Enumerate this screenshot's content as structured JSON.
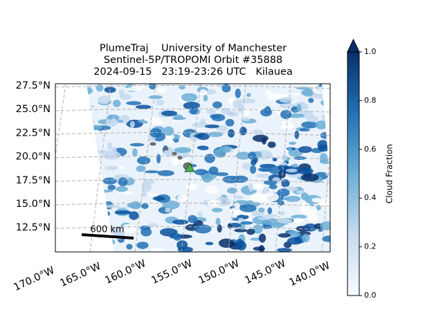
{
  "title_lines": [
    "PlumeTraj    University of Manchester",
    "Sentinel-5P/TROPOMI Orbit #35888",
    "2024-09-15   23:19-23:26 UTC   Kilauea"
  ],
  "map": {
    "lat_labels": [
      "27.5°N",
      "25.0°N",
      "22.5°N",
      "20.0°N",
      "17.5°N",
      "15.0°N",
      "12.5°N"
    ],
    "lon_labels": [
      "170.0°W",
      "165.0°W",
      "160.0°W",
      "155.0°W",
      "150.0°W",
      "145.0°W",
      "140.0°W"
    ],
    "scale_bar": "600 km"
  },
  "colorbar": {
    "label": "Cloud Fraction",
    "lim": [
      0,
      1
    ],
    "ticks": [
      {
        "value": 0,
        "label": "0.0"
      },
      {
        "value": 0.2,
        "label": "0.2"
      },
      {
        "value": 0.4,
        "label": "0.4"
      },
      {
        "value": 0.6,
        "label": "0.6"
      },
      {
        "value": 0.8,
        "label": "0.8"
      },
      {
        "value": 1,
        "label": "1.0"
      }
    ]
  }
}
